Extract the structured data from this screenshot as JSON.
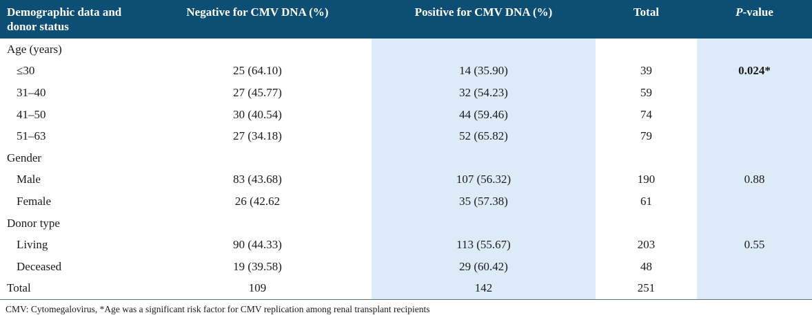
{
  "table": {
    "headers": {
      "col0_line1": "Demographic data and",
      "col0_line2": "donor status",
      "col1": "Negative for CMV DNA (%)",
      "col2": "Positive for CMV DNA (%)",
      "col3": "Total",
      "col4_italic": "P",
      "col4_rest": "-value"
    },
    "rows": [
      {
        "label": "Age (years)",
        "negative": "",
        "positive": "",
        "total": "",
        "p": ""
      },
      {
        "label": "≤30",
        "negative": "25 (64.10)",
        "positive": "14 (35.90)",
        "total": "39",
        "p": "0.024*"
      },
      {
        "label": "31–40",
        "negative": "27 (45.77)",
        "positive": "32 (54.23)",
        "total": "59",
        "p": ""
      },
      {
        "label": "41–50",
        "negative": "30 (40.54)",
        "positive": "44 (59.46)",
        "total": "74",
        "p": ""
      },
      {
        "label": "51–63",
        "negative": "27 (34.18)",
        "positive": "52 (65.82)",
        "total": "79",
        "p": ""
      },
      {
        "label": "Gender",
        "negative": "",
        "positive": "",
        "total": "",
        "p": ""
      },
      {
        "label": "Male",
        "negative": "83 (43.68)",
        "positive": "107 (56.32)",
        "total": "190",
        "p": "0.88"
      },
      {
        "label": "Female",
        "negative": "26 (42.62",
        "positive": "35 (57.38)",
        "total": "61",
        "p": ""
      },
      {
        "label": "Donor type",
        "negative": "",
        "positive": "",
        "total": "",
        "p": ""
      },
      {
        "label": "Living",
        "negative": "90 (44.33)",
        "positive": "113 (55.67)",
        "total": "203",
        "p": "0.55"
      },
      {
        "label": "Deceased",
        "negative": "19 (39.58)",
        "positive": "29 (60.42)",
        "total": "48",
        "p": ""
      },
      {
        "label": "Total",
        "negative": "109",
        "positive": "142",
        "total": "251",
        "p": ""
      }
    ]
  },
  "footnote": "CMV: Cytomegalovirus, *Age was a significant risk factor for CMV replication among renal transplant recipients",
  "colors": {
    "header_bg": "#0d4f74",
    "shade": "#dcebf7"
  }
}
